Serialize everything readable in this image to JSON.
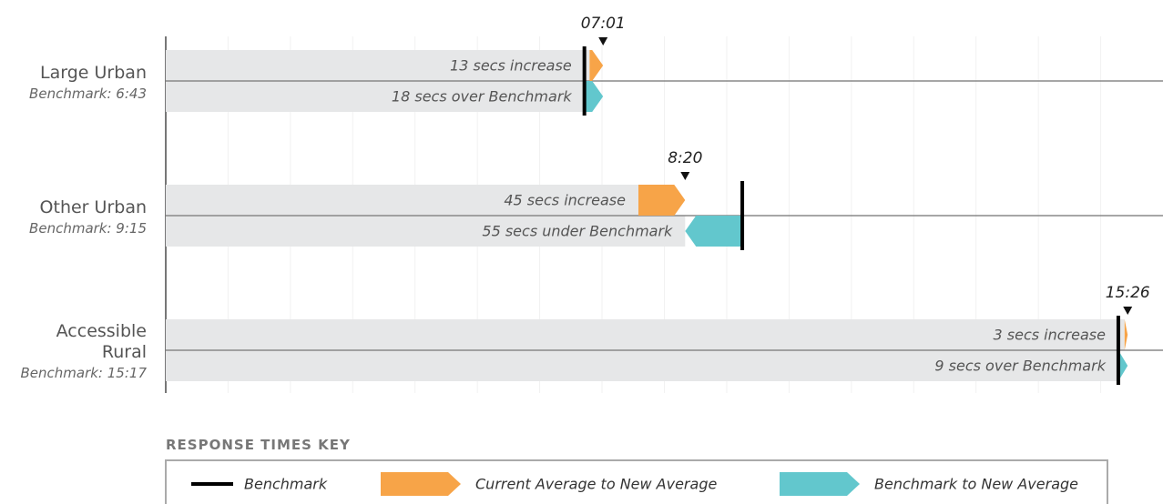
{
  "chart_data": {
    "type": "response_times",
    "rows": [
      {
        "name": "Large Urban",
        "benchmark": {
          "value": 403,
          "label": "Benchmark: 6:43"
        },
        "new_average": {
          "value": 421,
          "label": "07:01"
        },
        "increase": {
          "value": 13,
          "label": "13 secs increase"
        },
        "vs_benchmark": {
          "value": 18,
          "label": "18 secs over Benchmark"
        }
      },
      {
        "name": "Other Urban",
        "benchmark": {
          "value": 555,
          "label": "Benchmark: 9:15"
        },
        "new_average": {
          "value": 500,
          "label": "8:20"
        },
        "increase": {
          "value": 45,
          "label": "45 secs increase"
        },
        "vs_benchmark": {
          "value": -55,
          "label": "55 secs under Benchmark"
        }
      },
      {
        "name": "Accessible Rural",
        "benchmark": {
          "value": 917,
          "label": "Benchmark: 15:17"
        },
        "new_average": {
          "value": 926,
          "label": "15:26"
        },
        "increase": {
          "value": 3,
          "label": "3 secs increase"
        },
        "vs_benchmark": {
          "value": 9,
          "label": "9 secs over Benchmark"
        }
      }
    ],
    "xlim": [
      0,
      960
    ],
    "xticks": [
      0,
      60,
      120,
      180,
      240,
      300,
      360,
      420,
      480,
      540,
      600,
      660,
      720,
      780,
      840,
      900
    ],
    "colors": {
      "increase": "#f7a448",
      "vs_benchmark": "#62c7cd",
      "benchmark": "#000000",
      "track": "#e6e7e8"
    },
    "key": {
      "title": "RESPONSE TIMES KEY",
      "items": [
        "Benchmark",
        "Current Average to New Average",
        "Benchmark to New Average"
      ]
    }
  }
}
